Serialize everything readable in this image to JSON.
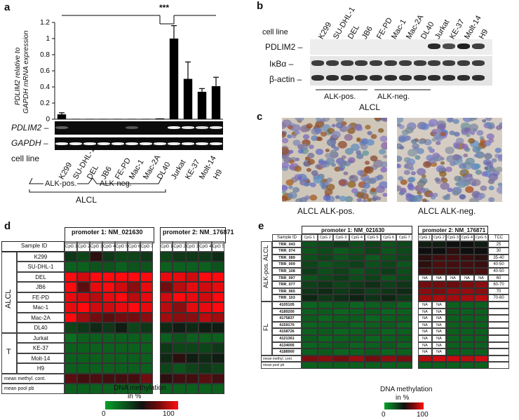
{
  "panel_labels": {
    "a": "a",
    "b": "b",
    "c": "c",
    "d": "d",
    "e": "e"
  },
  "panel_a": {
    "ylabel_line1": "PDLIM2 relative to",
    "ylabel_line2": "GAPDH mRNA expression",
    "significance": "***",
    "gel_labels": [
      "PDLIM2",
      "GAPDH"
    ],
    "cell_line_label": "cell line",
    "group_pos": "ALK-pos.",
    "group_neg": "ALK-neg.",
    "group_alcl": "ALCL",
    "chart_data": {
      "type": "bar",
      "categories": [
        "K299",
        "SU-DHL-1",
        "DEL",
        "JB6",
        "FE-PD",
        "Mac-1",
        "Mac-2A",
        "DL40",
        "Jurkat",
        "KE-37",
        "Molt-14",
        "H9"
      ],
      "values": [
        0.06,
        0.005,
        0.005,
        0.005,
        0.005,
        0.005,
        0.005,
        0.01,
        1.0,
        0.5,
        0.34,
        0.41
      ],
      "errors": [
        0.02,
        0,
        0,
        0,
        0,
        0,
        0,
        0,
        0.16,
        0.21,
        0.04,
        0.11
      ],
      "ylim": [
        0,
        1.2
      ],
      "yticks": [
        "0",
        "0.2",
        "0.4",
        "0.6",
        "0.8",
        "1",
        "1.2"
      ]
    }
  },
  "panel_b": {
    "cell_line_label": "cell line",
    "lines": [
      "K299",
      "SU-DHL-1",
      "DEL",
      "JB6",
      "FE-PD",
      "Mac-1",
      "Mac-2A",
      "DL40",
      "Jurkat",
      "KE-37",
      "Molt-14",
      "H9"
    ],
    "row_labels": [
      "PDLIM2",
      "IκBα",
      "β-actin"
    ],
    "group_pos": "ALK-pos.",
    "group_neg": "ALK-neg.",
    "group_alcl": "ALCL"
  },
  "panel_c": {
    "captions": [
      "ALCL ALK-pos.",
      "ALCL ALK-neg."
    ]
  },
  "panel_d": {
    "promoter1": "promoter 1: NM_021630",
    "promoter2": "promoter 2: NM_176871",
    "sample_header": "Sample ID",
    "cpg1": [
      "CpG 1",
      "CpG 2",
      "CpG 3",
      "CpG 4",
      "CpG 5",
      "CpG 6",
      "CpG 7"
    ],
    "cpg2": [
      "CpG 1",
      "CpG 2",
      "CpG 3",
      "CpG 4",
      "CpG 5"
    ],
    "group_alcl": "ALCL",
    "group_t": "T",
    "samples": [
      "K299",
      "SU-DHL-1",
      "DEL",
      "JB6",
      "FE-PD",
      "Mac-1",
      "Mac-2A",
      "DL40",
      "Jurkat",
      "KE-37",
      "Molt-14",
      "H9"
    ],
    "footer_rows": [
      "mean methyl. cont.",
      "mean pool pb"
    ],
    "legend_title": "DNA methylation",
    "legend_unit": "in %",
    "legend_min": "0",
    "legend_max": "100",
    "colors": {
      "low": "#0a8a2a",
      "high": "#ee1010",
      "mid": "#101010"
    }
  },
  "panel_e": {
    "promoter1": "promoter 1: NM_021630",
    "promoter2": "promoter 2: NM_176871",
    "sample_header": "Sample ID",
    "cpg1": [
      "CpG 1",
      "CpG 2",
      "CpG 3",
      "CpG 4",
      "CpG 5",
      "CpG 6",
      "CpG 7"
    ],
    "cpg2": [
      "CpG 1",
      "CpG 2",
      "CpG 3",
      "CpG 4",
      "CpG 5"
    ],
    "tcc_header": "TCC",
    "group_alcl": "ALK-pos. ALCL",
    "group_fl": "FL",
    "samples": [
      "TRR_043",
      "TRR_074",
      "TRR_089",
      "TRR_009",
      "TRR_108",
      "TRR_097",
      "TRR_077",
      "TRR_065",
      "TRR_103",
      "4105105",
      "4189200",
      "4175837",
      "4159170",
      "4158726",
      "4121361",
      "4134005",
      "4188900"
    ],
    "tcc": [
      "25",
      "30",
      "35-40",
      "40-50",
      "40-50",
      "60",
      "60-70",
      "70",
      "70-80",
      "",
      "",
      "",
      "",
      "",
      "",
      "",
      ""
    ],
    "na_label": "NA",
    "footer_rows": [
      "mean methyl. cont.",
      "mean pool pb"
    ],
    "legend_title": "DNA methylation",
    "legend_unit": "in %",
    "legend_min": "0",
    "legend_max": "100"
  }
}
